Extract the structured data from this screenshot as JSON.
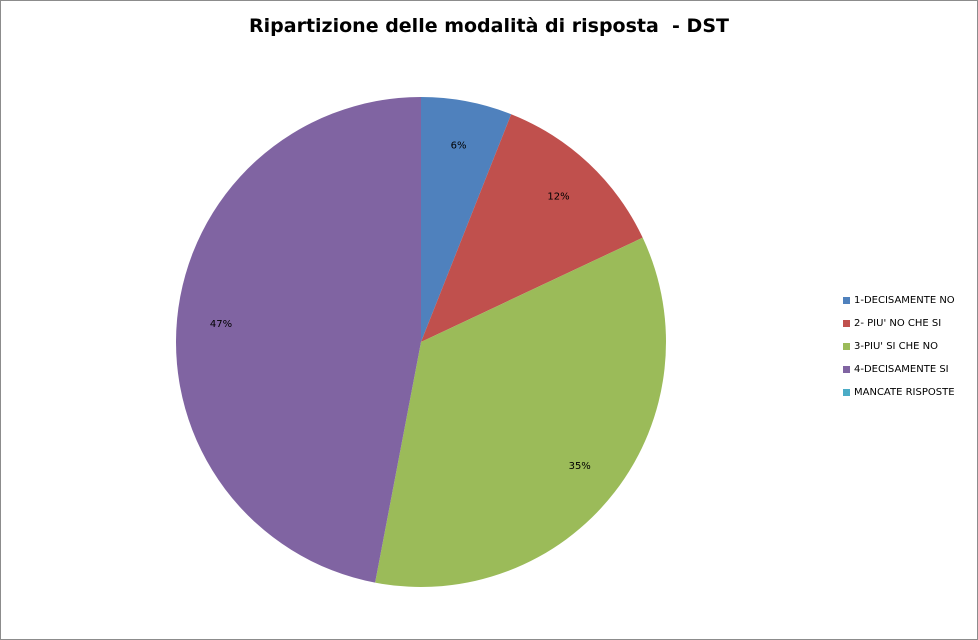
{
  "chart_data": {
    "type": "pie",
    "title": "Ripartizione delle modalità di risposta  - DST",
    "categories": [
      "1-DECISAMENTE NO",
      "2- PIU' NO CHE SI",
      "3-PIU' SI CHE NO",
      "4-DECISAMENTE SI",
      "MANCATE RISPOSTE"
    ],
    "values": [
      6,
      12,
      35,
      47,
      0
    ],
    "labels": [
      "6%",
      "12%",
      "35%",
      "47%",
      ""
    ],
    "colors": [
      "#4f81bd",
      "#c0504d",
      "#9bbb59",
      "#8064a2",
      "#4bacc6"
    ],
    "legend_position": "right"
  }
}
